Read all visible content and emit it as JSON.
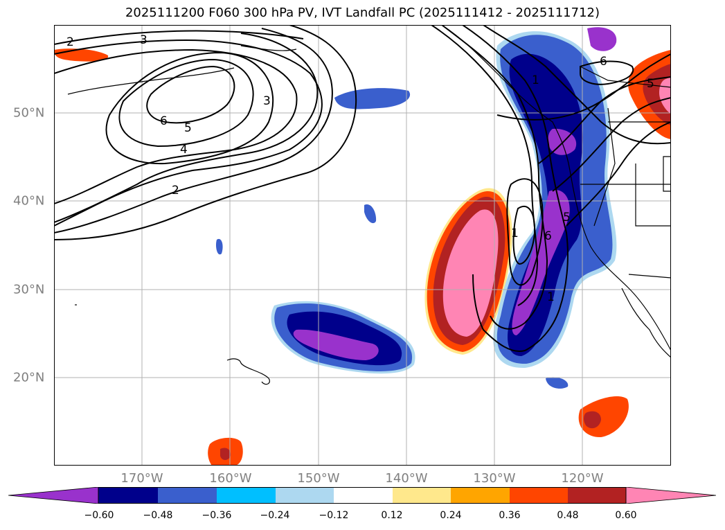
{
  "title": "2025111200 F060 300 hPa PV, IVT Landfall PC (2025111412 - 2025111712)",
  "lon_labels": [
    "170°W",
    "160°W",
    "150°W",
    "140°W",
    "130°W",
    "120°W"
  ],
  "lat_labels": [
    "50°N",
    "40°N",
    "30°N",
    "20°N"
  ],
  "contour_labels": [
    "2",
    "3",
    "6",
    "5",
    "4",
    "3",
    "2",
    "1",
    "6",
    "5",
    "1",
    "6",
    "5",
    "1"
  ],
  "colorbar": {
    "ticks": [
      "−0.60",
      "−0.48",
      "−0.36",
      "−0.24",
      "−0.12",
      "0.12",
      "0.24",
      "0.36",
      "0.48",
      "0.60"
    ],
    "colors": [
      "#9932cc",
      "#00008b",
      "#3a5fcd",
      "#00bfff",
      "#add8f0",
      "#ffffff",
      "#ffe88c",
      "#ffa500",
      "#ff4500",
      "#b22222",
      "#ff85b4"
    ]
  }
}
